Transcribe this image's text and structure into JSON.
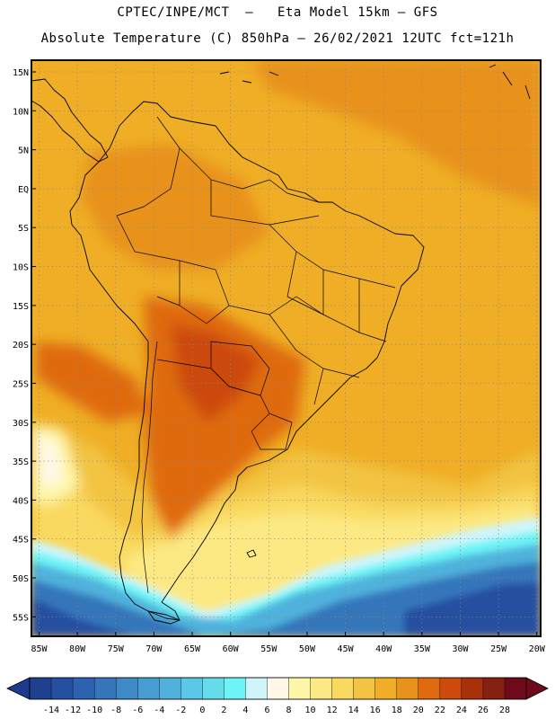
{
  "header": {
    "line1": "CPTEC/INPE/MCT  –   Eta Model 15km – GFS",
    "line2": "Absolute Temperature (C) 850hPa – 26/02/2021 12UTC fct=121h"
  },
  "map": {
    "region": "South America",
    "variable": "Absolute Temperature (C) 850hPa",
    "lat_labels": [
      "15N",
      "10N",
      "5N",
      "EQ",
      "5S",
      "10S",
      "15S",
      "20S",
      "25S",
      "30S",
      "35S",
      "40S",
      "45S",
      "50S",
      "55S"
    ],
    "lat_values": [
      15,
      10,
      5,
      0,
      -5,
      -10,
      -15,
      -20,
      -25,
      -30,
      -35,
      -40,
      -45,
      -50,
      -55
    ],
    "lon_labels": [
      "85W",
      "80W",
      "75W",
      "70W",
      "65W",
      "60W",
      "55W",
      "50W",
      "45W",
      "40W",
      "35W",
      "30W",
      "25W",
      "20W"
    ],
    "lon_values": [
      -85,
      -80,
      -75,
      -70,
      -65,
      -60,
      -55,
      -50,
      -45,
      -40,
      -35,
      -30,
      -25,
      -20
    ],
    "lat_range": [
      -57.5,
      16.5
    ],
    "lon_range": [
      -86,
      -19.5
    ]
  },
  "colorbar": {
    "labels": [
      "-14",
      "-12",
      "-10",
      "-8",
      "-6",
      "-4",
      "-2",
      "0",
      "2",
      "4",
      "6",
      "8",
      "10",
      "12",
      "14",
      "16",
      "18",
      "20",
      "22",
      "24",
      "26",
      "28"
    ],
    "low_color": "#1e3a8c",
    "high_color": "#6e0a1a",
    "colors": [
      "#1f3f8f",
      "#2550a0",
      "#2c62b0",
      "#3576bb",
      "#3e8ac6",
      "#479dd0",
      "#50b2dc",
      "#5ac8e6",
      "#64dcec",
      "#6cf4f6",
      "#cff5fb",
      "#fff8e8",
      "#fef7a8",
      "#fde984",
      "#f9d95f",
      "#f3c443",
      "#efae25",
      "#e8921c",
      "#df6a10",
      "#cc4a0c",
      "#a8300a",
      "#862010",
      "#6e0a1a"
    ]
  },
  "legend_note": ""
}
